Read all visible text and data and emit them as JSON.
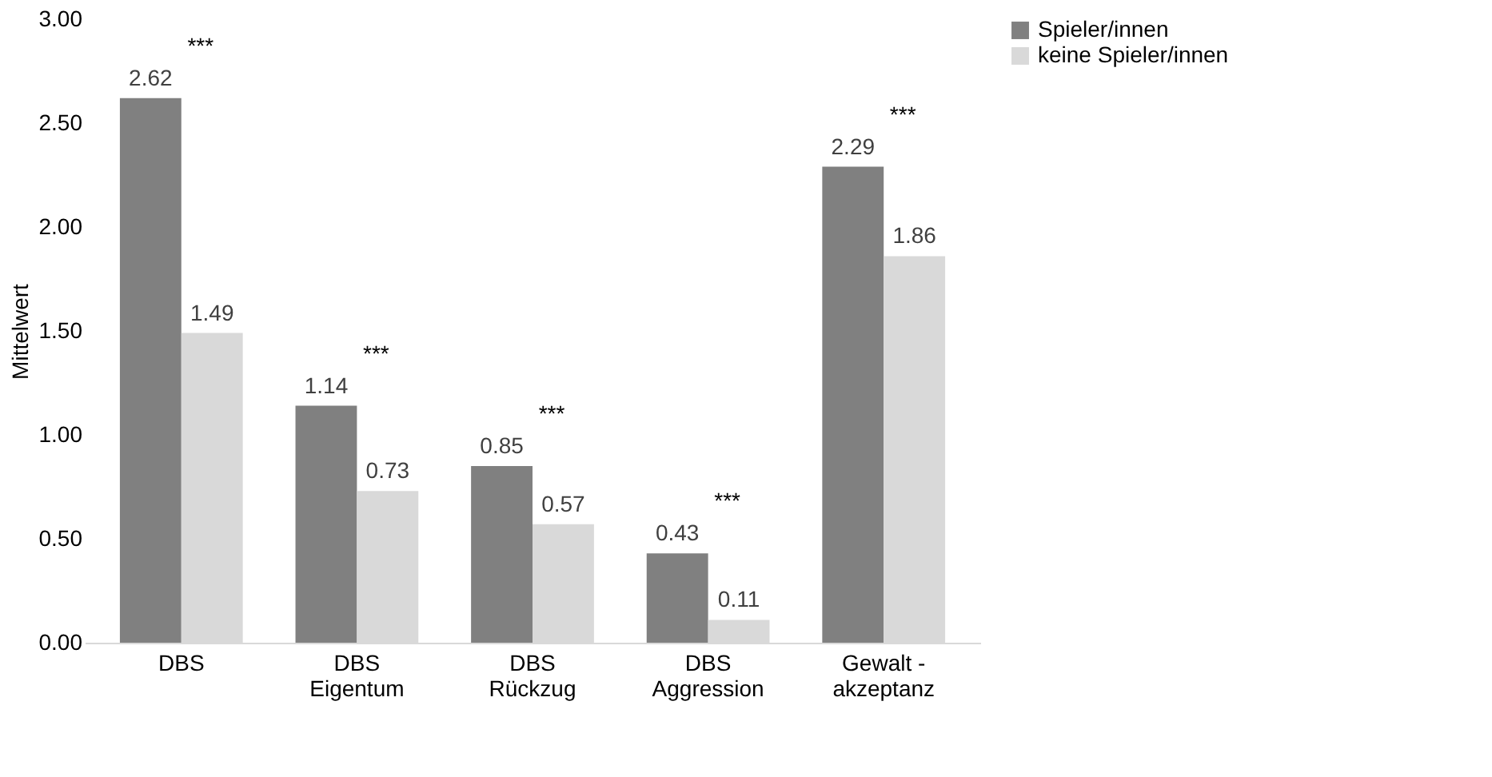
{
  "chart_data": {
    "type": "bar",
    "ylabel": "Mittelwert",
    "categories": [
      "DBS",
      "DBS\nEigentum",
      "DBS\nRückzug",
      "DBS\nAggression",
      "Gewalt -\nakzeptanz"
    ],
    "series": [
      {
        "name": "Spieler/innen",
        "color": "#808080",
        "values": [
          2.62,
          1.14,
          0.85,
          0.43,
          2.29
        ]
      },
      {
        "name": "keine Spieler/innen",
        "color": "#d9d9d9",
        "values": [
          1.49,
          0.73,
          0.57,
          0.11,
          1.86
        ]
      }
    ],
    "ylim": [
      0,
      3
    ],
    "yticks": [
      {
        "value": 0,
        "label": "0.00"
      },
      {
        "value": 0.5,
        "label": "0.50"
      },
      {
        "value": 1,
        "label": "1.00"
      },
      {
        "value": 1.5,
        "label": "1.50"
      },
      {
        "value": 2,
        "label": "2.00"
      },
      {
        "value": 2.5,
        "label": "2.50"
      },
      {
        "value": 3,
        "label": "3.00"
      }
    ],
    "grid": false,
    "legend": "right",
    "data_labels": true,
    "annotations": [
      "***",
      "***",
      "***",
      "***",
      "***"
    ]
  }
}
